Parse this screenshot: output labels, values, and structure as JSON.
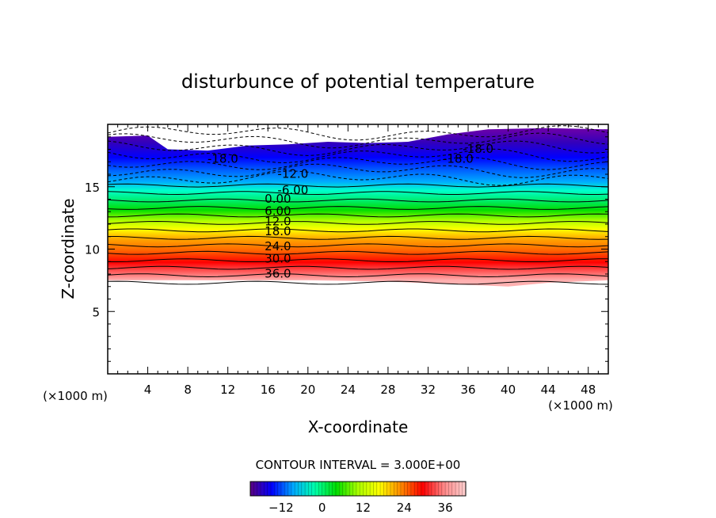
{
  "chart_data": {
    "type": "heatmap",
    "title": "disturbunce of potential temperature",
    "xlabel": "X-coordinate",
    "ylabel": "Z-coordinate",
    "x_unit": "(×1000 m)",
    "y_unit": "(×1000 m)",
    "xlim": [
      0,
      50
    ],
    "ylim": [
      0,
      20
    ],
    "x_ticks": [
      4,
      8,
      12,
      16,
      20,
      24,
      28,
      32,
      36,
      40,
      44,
      48
    ],
    "y_ticks": [
      5,
      10,
      15
    ],
    "contour_interval_label": "CONTOUR INTERVAL = 3.000E+00",
    "contour_interval": 3.0,
    "colorbar": {
      "range": [
        -21,
        42
      ],
      "ticks": [
        -12,
        0,
        12,
        24,
        36
      ],
      "colors": [
        "#5a0080",
        "#0000ff",
        "#00aaff",
        "#00ffaa",
        "#00dd00",
        "#aaff00",
        "#ffff00",
        "#ff8800",
        "#ff0000",
        "#ff8888",
        "#ffd0d0"
      ]
    },
    "contour_labels": [
      {
        "text": "-18.0",
        "x": 11.5,
        "z": 17.3
      },
      {
        "text": "-18.0",
        "x": 37.0,
        "z": 18.1
      },
      {
        "text": "-18.0",
        "x": 35.0,
        "z": 17.3
      },
      {
        "text": "-12.0",
        "x": 18.5,
        "z": 16.1
      },
      {
        "text": "-6.00",
        "x": 18.5,
        "z": 14.8
      },
      {
        "text": "0.00",
        "x": 17.0,
        "z": 14.1
      },
      {
        "text": "6.00",
        "x": 17.0,
        "z": 13.1
      },
      {
        "text": "12.0",
        "x": 17.0,
        "z": 12.3
      },
      {
        "text": "18.0",
        "x": 17.0,
        "z": 11.5
      },
      {
        "text": "24.0",
        "x": 17.0,
        "z": 10.3
      },
      {
        "text": "30.0",
        "x": 17.0,
        "z": 9.3
      },
      {
        "text": "36.0",
        "x": 17.0,
        "z": 8.1
      }
    ],
    "field_extent": {
      "z_bottom": 7.5,
      "z_top": 19.5
    },
    "temperature_range": [
      -21,
      39
    ],
    "grid": false
  }
}
